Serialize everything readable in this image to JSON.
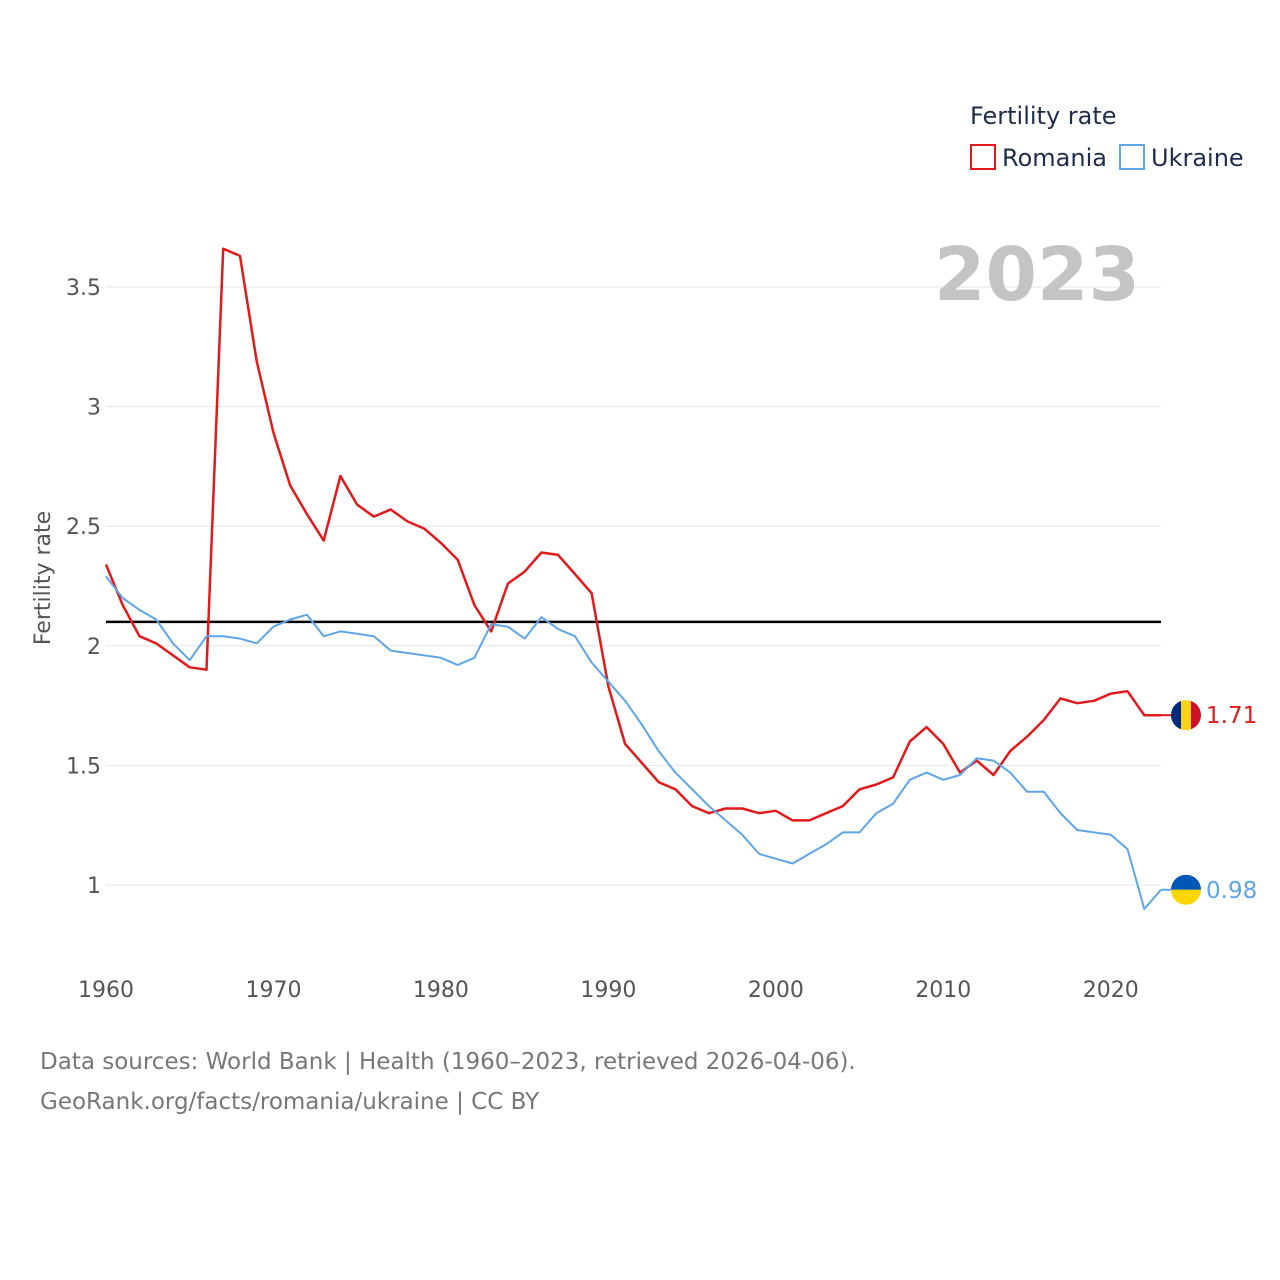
{
  "chart_data": {
    "type": "line",
    "y_axis_title": "Fertility rate",
    "x_ticks": [
      1960,
      1970,
      1980,
      1990,
      2000,
      2010,
      2020
    ],
    "y_ticks": [
      "1",
      "1.5",
      "2",
      "2.5",
      "3",
      "3.5"
    ],
    "y_tick_values": [
      1,
      1.5,
      2,
      2.5,
      3,
      3.5
    ],
    "xlim": [
      1960,
      2023
    ],
    "ylim": [
      0.75,
      3.75
    ],
    "current_year": "2023",
    "legend": {
      "title": "Fertility rate",
      "placement": "top-right"
    },
    "reference_line": {
      "value": 2.1,
      "color": "#000000"
    },
    "years": [
      1960,
      1961,
      1962,
      1963,
      1964,
      1965,
      1966,
      1967,
      1968,
      1969,
      1970,
      1971,
      1972,
      1973,
      1974,
      1975,
      1976,
      1977,
      1978,
      1979,
      1980,
      1981,
      1982,
      1983,
      1984,
      1985,
      1986,
      1987,
      1988,
      1989,
      1990,
      1991,
      1992,
      1993,
      1994,
      1995,
      1996,
      1997,
      1998,
      1999,
      2000,
      2001,
      2002,
      2003,
      2004,
      2005,
      2006,
      2007,
      2008,
      2009,
      2010,
      2011,
      2012,
      2013,
      2014,
      2015,
      2016,
      2017,
      2018,
      2019,
      2020,
      2021,
      2022,
      2023
    ],
    "series": [
      {
        "name": "Romania",
        "color": "#e31a1c",
        "end_label": "1.71",
        "flag": "romania-flag",
        "values": [
          2.34,
          2.17,
          2.04,
          2.01,
          1.96,
          1.91,
          1.9,
          3.66,
          3.63,
          3.19,
          2.89,
          2.67,
          2.55,
          2.44,
          2.71,
          2.59,
          2.54,
          2.57,
          2.52,
          2.49,
          2.43,
          2.36,
          2.17,
          2.06,
          2.26,
          2.31,
          2.39,
          2.38,
          2.3,
          2.22,
          1.83,
          1.59,
          1.51,
          1.43,
          1.4,
          1.33,
          1.3,
          1.32,
          1.32,
          1.3,
          1.31,
          1.27,
          1.27,
          1.3,
          1.33,
          1.4,
          1.42,
          1.45,
          1.6,
          1.66,
          1.59,
          1.47,
          1.52,
          1.46,
          1.56,
          1.62,
          1.69,
          1.78,
          1.76,
          1.77,
          1.8,
          1.81,
          1.71,
          1.71
        ]
      },
      {
        "name": "Ukraine",
        "color": "#5ea6e6",
        "end_label": "0.98",
        "flag": "ukraine-flag",
        "values": [
          2.29,
          2.2,
          2.15,
          2.11,
          2.01,
          1.94,
          2.04,
          2.04,
          2.03,
          2.01,
          2.08,
          2.11,
          2.13,
          2.04,
          2.06,
          2.05,
          2.04,
          1.98,
          1.97,
          1.96,
          1.95,
          1.92,
          1.95,
          2.09,
          2.08,
          2.03,
          2.12,
          2.07,
          2.04,
          1.93,
          1.85,
          1.77,
          1.67,
          1.56,
          1.47,
          1.4,
          1.33,
          1.27,
          1.21,
          1.13,
          1.11,
          1.09,
          1.13,
          1.17,
          1.22,
          1.22,
          1.3,
          1.34,
          1.44,
          1.47,
          1.44,
          1.46,
          1.53,
          1.52,
          1.47,
          1.39,
          1.39,
          1.3,
          1.23,
          1.22,
          1.21,
          1.15,
          0.9,
          0.98
        ]
      }
    ]
  },
  "footer": {
    "line1": "Data sources: World Bank | Health (1960–2023, retrieved 2026-04-06).",
    "line2": "GeoRank.org/facts/romania/ukraine | CC BY"
  }
}
